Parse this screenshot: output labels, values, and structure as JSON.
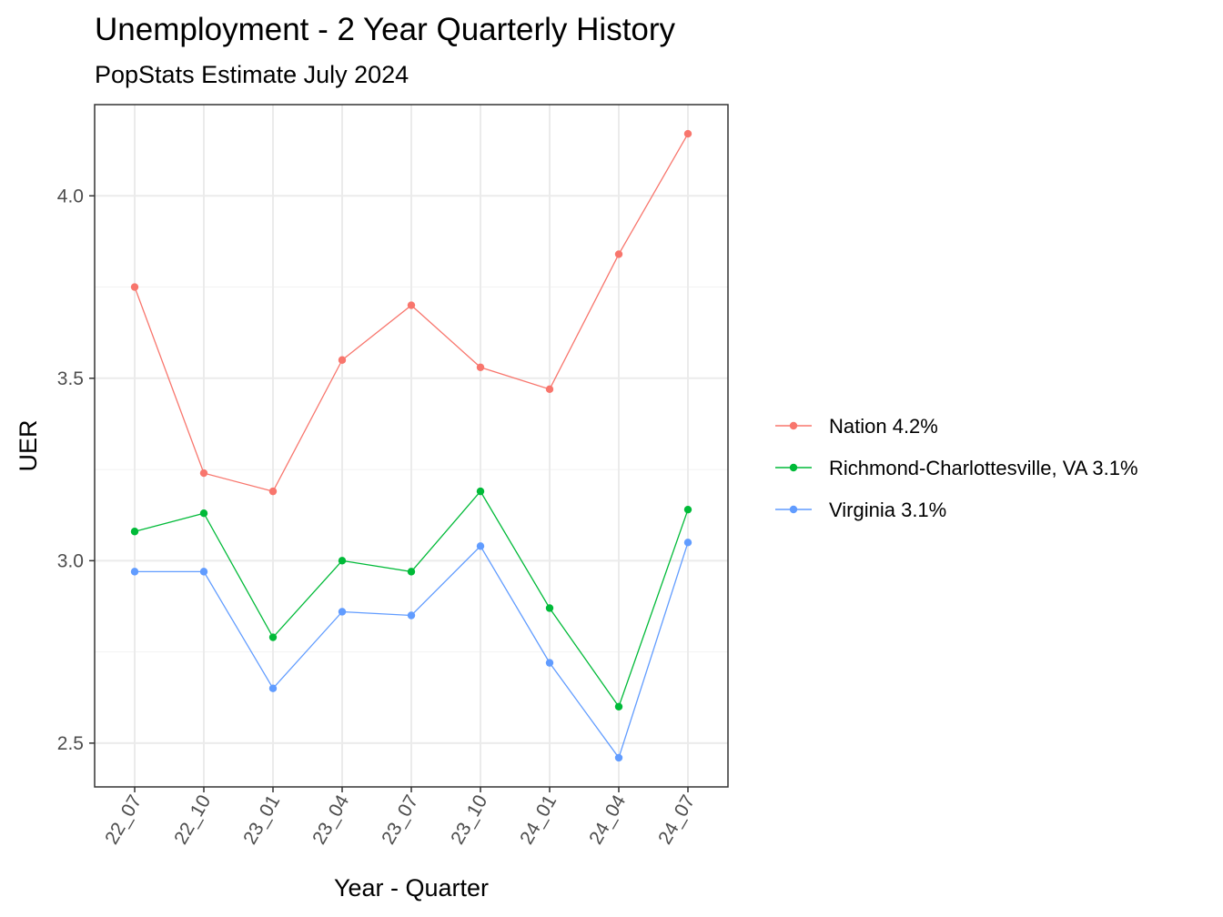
{
  "chart_data": {
    "type": "line",
    "title": "Unemployment - 2 Year Quarterly History",
    "subtitle": "PopStats Estimate July 2024",
    "xlabel": "Year - Quarter",
    "ylabel": "UER",
    "categories": [
      "22_07",
      "22_10",
      "23_01",
      "23_04",
      "23_07",
      "23_10",
      "24_01",
      "24_04",
      "24_07"
    ],
    "yticks": [
      2.5,
      3.0,
      3.5,
      4.0
    ],
    "ytick_labels": [
      "2.5",
      "3.0",
      "3.5",
      "4.0"
    ],
    "ylim": [
      2.38,
      4.25
    ],
    "grid": true,
    "legend_position": "right",
    "series": [
      {
        "name": "Nation 4.2%",
        "color": "#F8766D",
        "values": [
          3.75,
          3.24,
          3.19,
          3.55,
          3.7,
          3.53,
          3.47,
          3.84,
          4.17
        ]
      },
      {
        "name": "Richmond-Charlottesville, VA 3.1%",
        "color": "#00BA38",
        "values": [
          3.08,
          3.13,
          2.79,
          3.0,
          2.97,
          3.19,
          2.87,
          2.6,
          3.14
        ]
      },
      {
        "name": "Virginia 3.1%",
        "color": "#619CFF",
        "values": [
          2.97,
          2.97,
          2.65,
          2.86,
          2.85,
          3.04,
          2.72,
          2.46,
          3.05
        ]
      }
    ]
  }
}
